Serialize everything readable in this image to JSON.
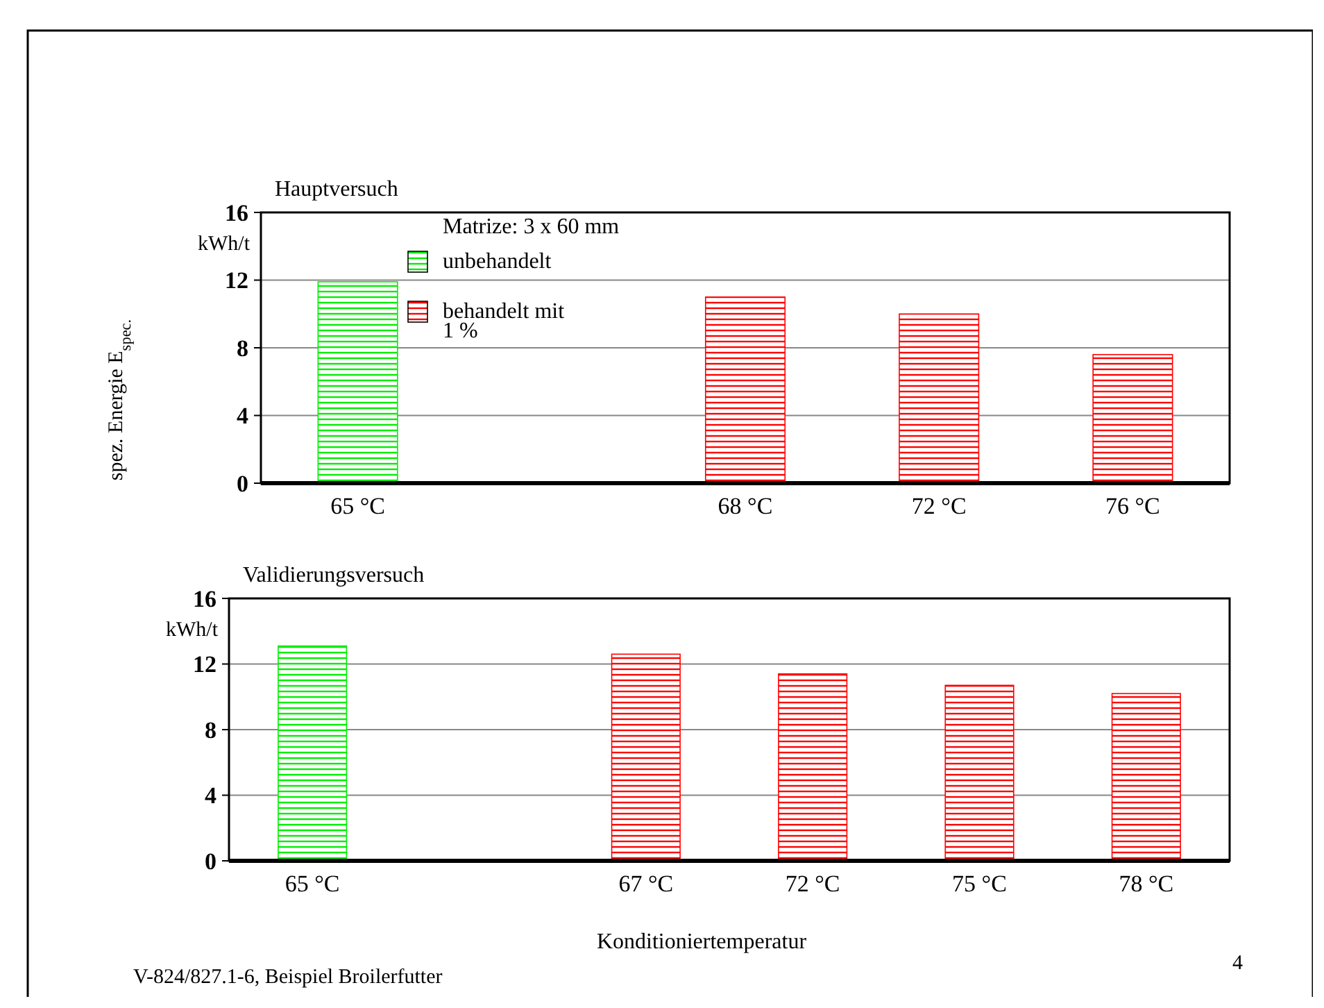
{
  "chart_data": [
    {
      "type": "bar",
      "title": "Hauptversuch",
      "ylabel": "spez. Energie E$_{spec.}$",
      "legend_title": "Matrize: 3 x 60 mm",
      "legend": "top left",
      "grid": "y",
      "annotations": [
        "kWh/t"
      ],
      "categories": [
        "65 °C",
        null,
        "68 °C",
        "72 °C",
        "76 °C"
      ],
      "ylim": [
        0,
        16
      ],
      "yticks": [
        0,
        4,
        8,
        12,
        16
      ],
      "series": [
        {
          "name": "unbehandelt",
          "color": "#00ee00",
          "values": [
            11.9,
            null,
            null,
            null,
            null
          ]
        },
        {
          "name": "behandelt mit 1 %",
          "color": "#ff0000",
          "values": [
            null,
            null,
            11.0,
            10.0,
            7.6
          ]
        }
      ]
    },
    {
      "type": "bar",
      "title": "Validierungsversuch",
      "xlabel": "Konditioniertemperatur",
      "grid": "y",
      "annotations": [
        "kWh/t",
        "V-824/827.1-6, Beispiel Broilerfutter",
        "4"
      ],
      "categories": [
        "65 °C",
        null,
        "67 °C",
        "72 °C",
        "75 °C",
        "78 °C"
      ],
      "ylim": [
        0,
        16
      ],
      "yticks": [
        0,
        4,
        8,
        12,
        16
      ],
      "series": [
        {
          "color": "#00ee00",
          "values": [
            13.1,
            null,
            null,
            null,
            null,
            null
          ]
        },
        {
          "color": "#ff0000",
          "values": [
            null,
            null,
            12.6,
            11.4,
            10.7,
            10.2
          ]
        }
      ]
    }
  ]
}
